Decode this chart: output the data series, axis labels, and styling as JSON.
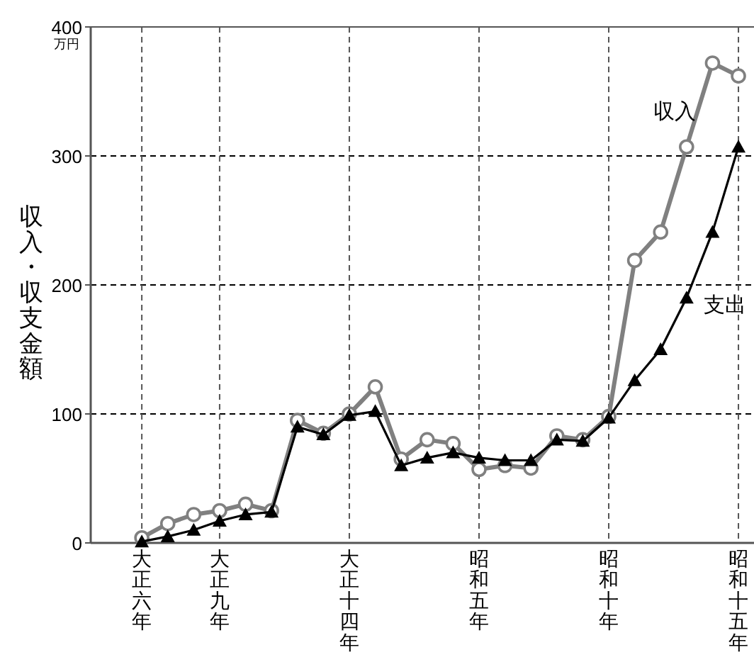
{
  "chart_data": {
    "type": "line",
    "ylabel": "収入・収支金額",
    "annotations": [
      "万円"
    ],
    "categories": [
      "大正六年",
      null,
      null,
      "大正九年",
      null,
      null,
      null,
      null,
      "大正十四年",
      null,
      null,
      null,
      null,
      "昭和五年",
      null,
      null,
      null,
      null,
      "昭和十年",
      null,
      null,
      null,
      null,
      "昭和十五年"
    ],
    "ylim": [
      0,
      400
    ],
    "yticks": [
      0,
      100,
      200,
      300,
      400
    ],
    "grid": true,
    "legend": false,
    "line_style": "solid",
    "series": [
      {
        "name": "収入",
        "color": "#808080",
        "marker": "circle",
        "values": [
          4,
          15,
          22,
          25,
          30,
          25,
          95,
          85,
          100,
          121,
          65,
          80,
          77,
          57,
          60,
          58,
          83,
          80,
          98,
          219,
          241,
          307,
          372,
          362
        ]
      },
      {
        "name": "支出",
        "color": "#000000",
        "marker": "triangle",
        "values": [
          1,
          5,
          10,
          17,
          22,
          24,
          90,
          84,
          99,
          102,
          60,
          66,
          70,
          66,
          64,
          64,
          80,
          79,
          97,
          126,
          150,
          190,
          241,
          307
        ]
      }
    ]
  }
}
